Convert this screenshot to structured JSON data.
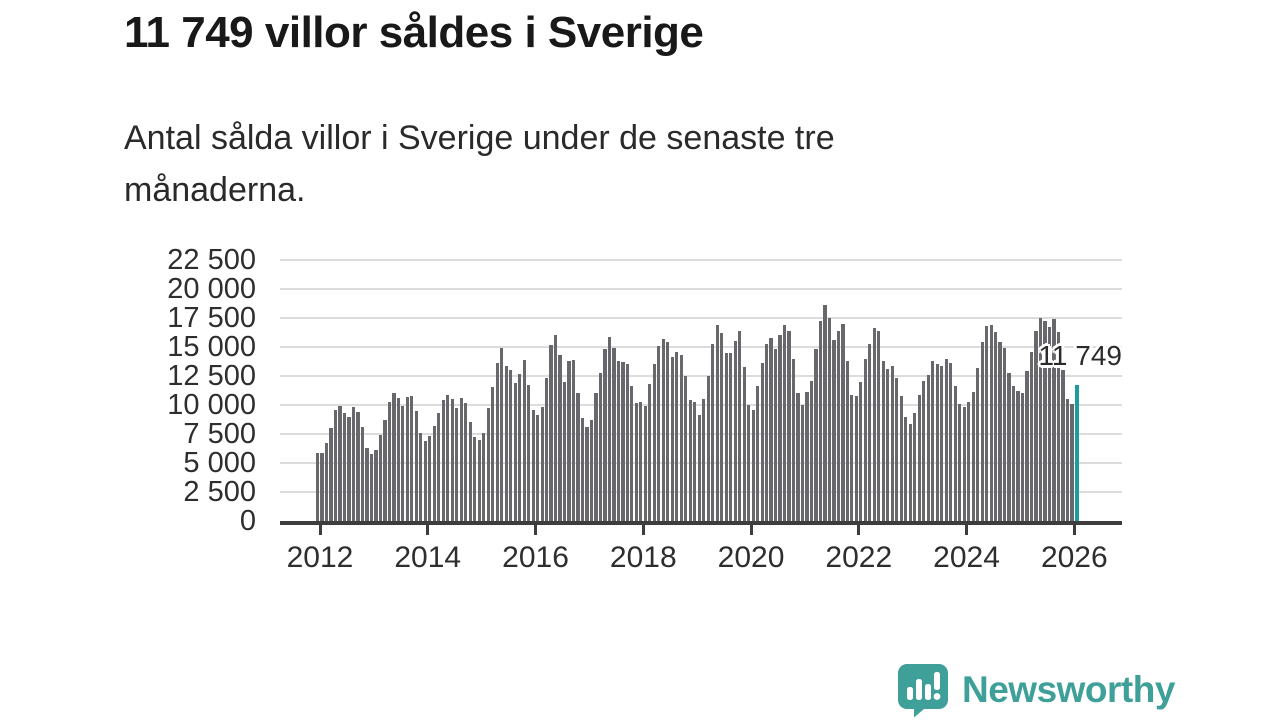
{
  "title": "11 749 villor såldes i Sverige",
  "subtitle": "Antal sålda villor i Sverige under de senaste tre månaderna.",
  "annotation": "11 749",
  "branding": {
    "logo_text": "Newsworthy"
  },
  "colors": {
    "bar": "#67676c",
    "highlight": "#1b9e9b",
    "grid": "#dcdcdc",
    "axis": "#3d3d3d",
    "logo": "#3f9f99"
  },
  "chart_data": {
    "type": "bar",
    "title": "11 749 villor såldes i Sverige",
    "xlabel": "",
    "ylabel": "",
    "ylim": [
      0,
      22500
    ],
    "grid": true,
    "legend": false,
    "frequency": "monthly",
    "x_range": "2012-01 to 2026-02",
    "highlight_last": true,
    "latest": {
      "label": "11 749",
      "value": 11749
    },
    "x_tick_labels": [
      "2012",
      "2014",
      "2016",
      "2018",
      "2020",
      "2022",
      "2024",
      "2026"
    ],
    "y_ticks": [
      {
        "value": 22500,
        "label": "22 500"
      },
      {
        "value": 20000,
        "label": "20 000"
      },
      {
        "value": 17500,
        "label": "17 500"
      },
      {
        "value": 15000,
        "label": "15 000"
      },
      {
        "value": 12500,
        "label": "12 500"
      },
      {
        "value": 10000,
        "label": "10 000"
      },
      {
        "value": 7500,
        "label": "7 500"
      },
      {
        "value": 5000,
        "label": "5 000"
      },
      {
        "value": 2500,
        "label": "2 500"
      },
      {
        "value": 0,
        "label": "0"
      }
    ],
    "values": [
      5900,
      5850,
      6700,
      8050,
      9600,
      9900,
      9300,
      8950,
      9800,
      9400,
      8100,
      6300,
      5800,
      6100,
      7400,
      8700,
      10300,
      11000,
      10600,
      9900,
      10700,
      10800,
      9500,
      7600,
      6900,
      7300,
      8200,
      9300,
      10400,
      10900,
      10500,
      9700,
      10600,
      10200,
      8550,
      7270,
      7000,
      7550,
      9720,
      11570,
      13600,
      14900,
      13370,
      13000,
      11870,
      12700,
      13900,
      11700,
      9580,
      9140,
      9870,
      12300,
      15170,
      16030,
      14310,
      12000,
      13760,
      13900,
      11000,
      8850,
      8100,
      8700,
      11000,
      12800,
      14800,
      15850,
      14950,
      13800,
      13700,
      13500,
      11600,
      10200,
      10300,
      9900,
      11800,
      13500,
      15100,
      15700,
      15400,
      14100,
      14600,
      14300,
      12500,
      10400,
      10300,
      9100,
      10550,
      12500,
      15300,
      16900,
      16200,
      14500,
      14500,
      15500,
      16400,
      13300,
      10000,
      9600,
      11600,
      13600,
      15300,
      15800,
      14800,
      16000,
      16900,
      16400,
      14000,
      11000,
      10000,
      11100,
      12100,
      14800,
      17200,
      18600,
      17500,
      15600,
      16400,
      17000,
      13800,
      10900,
      10800,
      12000,
      14000,
      15300,
      16600,
      16400,
      13800,
      13100,
      13400,
      12300,
      10750,
      9000,
      8400,
      9300,
      10900,
      12100,
      12600,
      13800,
      13500,
      13400,
      14000,
      13600,
      11600,
      10100,
      9800,
      10300,
      11100,
      13200,
      15400,
      16800,
      16900,
      16300,
      15400,
      14900,
      12800,
      11600,
      11200,
      11000,
      12900,
      14600,
      16400,
      17500,
      17200,
      16700,
      17400,
      16300,
      13000,
      10500,
      10100,
      11749
    ]
  }
}
